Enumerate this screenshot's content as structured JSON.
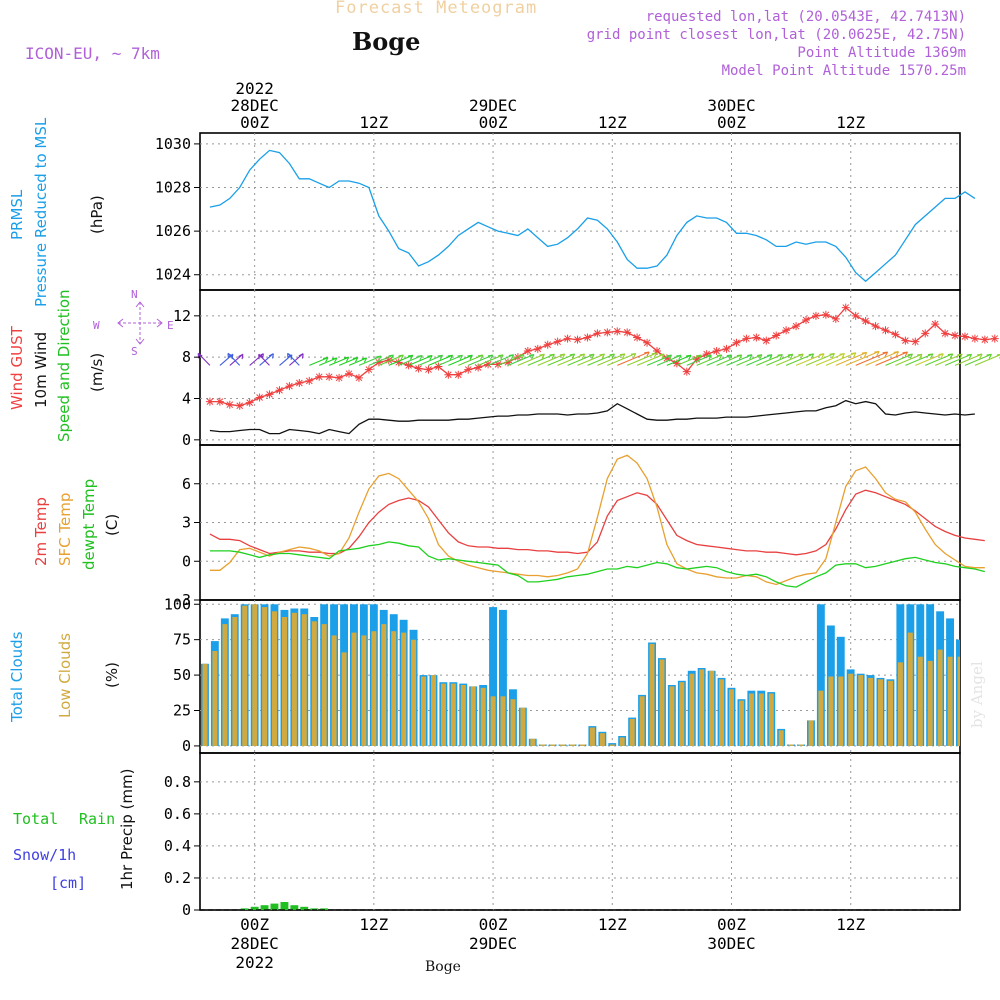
{
  "header": {
    "product": "Forecast Meteogram",
    "station": "Boge",
    "model": "ICON-EU, ~ 7km",
    "requested": "requested lon,lat (20.0543E, 42.7413N)",
    "gridpoint": "grid point closest lon,lat (20.0625E, 42.75N)",
    "point_alt": "Point Altitude 1369m",
    "model_alt": "Model Point Altitude 1570.25m",
    "footer_station": "Boge",
    "watermark": "by Angel"
  },
  "time_axis": {
    "top_labels": [
      {
        "lines": [
          "2022",
          "28DEC",
          "00Z"
        ],
        "hour": 0
      },
      {
        "lines": [
          "12Z"
        ],
        "hour": 12
      },
      {
        "lines": [
          "29DEC",
          "00Z"
        ],
        "hour": 24
      },
      {
        "lines": [
          "12Z"
        ],
        "hour": 36
      },
      {
        "lines": [
          "30DEC",
          "00Z"
        ],
        "hour": 48
      },
      {
        "lines": [
          "12Z"
        ],
        "hour": 60
      }
    ],
    "bottom_labels": [
      {
        "lines": [
          "00Z",
          "28DEC",
          "2022"
        ],
        "hour": 0
      },
      {
        "lines": [
          "12Z"
        ],
        "hour": 12
      },
      {
        "lines": [
          "00Z",
          "29DEC"
        ],
        "hour": 24
      },
      {
        "lines": [
          "12Z"
        ],
        "hour": 36
      },
      {
        "lines": [
          "00Z",
          "30DEC"
        ],
        "hour": 48
      },
      {
        "lines": [
          "12Z"
        ],
        "hour": 60
      }
    ],
    "start_hour": -5.5,
    "end_hour": 71
  },
  "panels": {
    "pressure": {
      "label1": "PRMSL",
      "label2": "Pressure Reduced to MSL",
      "unit": "(hPa)",
      "color": "#1a9fe8"
    },
    "wind": {
      "label_gust": "Wind GUST",
      "label_10m": "10m Wind",
      "label_dir": "Speed and Direction",
      "unit": "(m/s)",
      "compass": {
        "n": "N",
        "s": "S",
        "w": "W",
        "e": "E"
      }
    },
    "temp": {
      "label_2m": "2m Temp",
      "label_sfc": "SFC Temp",
      "label_dew": "dewpt Temp",
      "unit": "(C)"
    },
    "clouds": {
      "label_total": "Total Clouds",
      "label_low": "Low Clouds",
      "unit": "(%)"
    },
    "precip": {
      "label_total": "Total",
      "label_rain": "Rain",
      "label_snow": "Snow/1h",
      "label_cm": "[cm]",
      "unit": "1hr Precip (mm)"
    }
  },
  "chart_data": [
    {
      "type": "line",
      "title": "PRMSL Pressure Reduced to MSL",
      "ylabel": "(hPa)",
      "ylim": [
        1023.3,
        1030.5
      ],
      "yticks": [
        1024,
        1026,
        1028,
        1030
      ],
      "x_hours_start": -4.5,
      "x_step": 1,
      "series": [
        {
          "name": "PRMSL",
          "color": "#1a9fe8",
          "values": [
            1027.1,
            1027.2,
            1027.5,
            1028.0,
            1028.8,
            1029.3,
            1029.7,
            1029.6,
            1029.1,
            1028.4,
            1028.4,
            1028.2,
            1028.0,
            1028.3,
            1028.3,
            1028.2,
            1028.0,
            1026.7,
            1026.0,
            1025.2,
            1025.0,
            1024.4,
            1024.6,
            1024.9,
            1025.3,
            1025.8,
            1026.1,
            1026.4,
            1026.2,
            1026.0,
            1025.9,
            1025.8,
            1026.1,
            1025.7,
            1025.3,
            1025.4,
            1025.7,
            1026.1,
            1026.6,
            1026.5,
            1026.1,
            1025.5,
            1024.7,
            1024.3,
            1024.3,
            1024.4,
            1024.9,
            1025.8,
            1026.4,
            1026.7,
            1026.6,
            1026.6,
            1026.4,
            1025.9,
            1025.9,
            1025.8,
            1025.6,
            1025.3,
            1025.3,
            1025.5,
            1025.4,
            1025.5,
            1025.5,
            1025.3,
            1024.8,
            1024.1,
            1023.7,
            1024.1,
            1024.5,
            1024.9,
            1025.6,
            1026.3,
            1026.7,
            1027.1,
            1027.5,
            1027.5,
            1027.8,
            1027.5
          ]
        }
      ]
    },
    {
      "type": "line",
      "title": "Wind GUST / 10m Wind Speed and Direction",
      "ylabel": "(m/s)",
      "ylim": [
        -0.5,
        14.5
      ],
      "yticks": [
        0,
        4,
        8,
        12
      ],
      "x_hours_start": -4.5,
      "x_step": 1,
      "series": [
        {
          "name": "Wind GUST",
          "color": "#f04040",
          "values": [
            3.7,
            3.7,
            3.4,
            3.3,
            3.6,
            4.1,
            4.4,
            4.8,
            5.2,
            5.5,
            5.7,
            6.1,
            6.1,
            6.0,
            6.4,
            6.0,
            6.8,
            7.5,
            7.7,
            7.5,
            7.2,
            6.9,
            6.8,
            7.1,
            6.3,
            6.3,
            6.8,
            7.0,
            7.3,
            7.3,
            7.5,
            8.0,
            8.6,
            8.8,
            9.2,
            9.5,
            9.8,
            9.7,
            9.9,
            10.3,
            10.4,
            10.5,
            10.4,
            9.9,
            9.4,
            8.6,
            7.9,
            7.4,
            6.6,
            7.8,
            8.3,
            8.6,
            8.8,
            9.4,
            9.8,
            9.9,
            9.6,
            10.1,
            10.6,
            11.0,
            11.6,
            12.0,
            12.1,
            11.7,
            12.8,
            12.0,
            11.5,
            11.0,
            10.6,
            10.2,
            9.6,
            9.5,
            10.3,
            11.2,
            10.3,
            10.1,
            10.0,
            9.8,
            9.7,
            9.8
          ]
        },
        {
          "name": "10m Wind",
          "color": "#111111",
          "values": [
            0.9,
            0.8,
            0.8,
            0.9,
            1.0,
            1.0,
            0.6,
            0.6,
            1.0,
            0.9,
            0.8,
            0.6,
            1.0,
            0.8,
            0.6,
            1.5,
            2.0,
            2.0,
            1.9,
            1.8,
            1.8,
            1.9,
            1.9,
            1.9,
            1.9,
            2.0,
            2.0,
            2.1,
            2.2,
            2.3,
            2.3,
            2.4,
            2.4,
            2.5,
            2.5,
            2.5,
            2.4,
            2.5,
            2.5,
            2.6,
            2.8,
            3.5,
            3.0,
            2.5,
            2.0,
            1.9,
            1.9,
            2.0,
            2.0,
            2.1,
            2.1,
            2.1,
            2.2,
            2.2,
            2.2,
            2.3,
            2.4,
            2.5,
            2.6,
            2.7,
            2.8,
            2.8,
            3.1,
            3.3,
            3.8,
            3.5,
            3.7,
            3.5,
            2.5,
            2.4,
            2.6,
            2.7,
            2.6,
            2.5,
            2.4,
            2.5,
            2.4,
            2.5
          ]
        }
      ]
    },
    {
      "type": "line",
      "title": "2m Temp / SFC Temp / dewpt Temp",
      "ylabel": "(C)",
      "ylim": [
        -3,
        9
      ],
      "yticks": [
        -3,
        0,
        3,
        6
      ],
      "x_hours_start": -4.5,
      "x_step": 1,
      "series": [
        {
          "name": "2m Temp",
          "color": "#e84040",
          "values": [
            2.1,
            1.7,
            1.7,
            1.6,
            1.2,
            0.9,
            0.6,
            0.7,
            0.8,
            0.8,
            0.7,
            0.7,
            0.6,
            0.6,
            1.0,
            1.9,
            3.0,
            3.8,
            4.4,
            4.7,
            4.9,
            4.7,
            4.2,
            3.2,
            2.2,
            1.5,
            1.2,
            1.1,
            1.1,
            1.0,
            1.0,
            0.9,
            0.9,
            0.8,
            0.8,
            0.7,
            0.7,
            0.6,
            0.7,
            1.5,
            3.5,
            4.7,
            5.0,
            5.3,
            5.1,
            4.4,
            3.2,
            2.0,
            1.6,
            1.3,
            1.2,
            1.1,
            1.0,
            0.9,
            0.8,
            0.8,
            0.7,
            0.7,
            0.6,
            0.5,
            0.6,
            0.8,
            1.3,
            2.5,
            4.0,
            5.2,
            5.5,
            5.3,
            5.0,
            4.7,
            4.4,
            3.9,
            3.3,
            2.7,
            2.3,
            2.0,
            1.8,
            1.7,
            1.6
          ]
        },
        {
          "name": "SFC Temp",
          "color": "#e8a030",
          "values": [
            -0.7,
            -0.7,
            -0.1,
            0.9,
            1.0,
            0.7,
            0.4,
            0.7,
            0.9,
            1.1,
            1.0,
            0.8,
            0.4,
            0.6,
            1.8,
            3.8,
            5.6,
            6.6,
            6.8,
            6.4,
            5.5,
            4.6,
            3.3,
            1.3,
            0.4,
            0.0,
            -0.3,
            -0.5,
            -0.7,
            -0.8,
            -0.9,
            -1.0,
            -1.1,
            -1.1,
            -1.2,
            -1.1,
            -0.9,
            -0.6,
            0.6,
            3.4,
            6.4,
            7.9,
            8.2,
            7.6,
            6.4,
            4.2,
            1.3,
            -0.2,
            -0.6,
            -0.9,
            -1.0,
            -1.2,
            -1.3,
            -1.3,
            -1.1,
            -1.2,
            -1.6,
            -1.8,
            -1.5,
            -1.2,
            -1.0,
            -0.9,
            0.2,
            3.0,
            5.8,
            7.0,
            7.3,
            6.4,
            5.3,
            4.8,
            4.6,
            3.8,
            2.5,
            1.3,
            0.6,
            0.1,
            -0.4,
            -0.5,
            -0.5
          ]
        },
        {
          "name": "dewpt Temp",
          "color": "#20d020",
          "values": [
            0.8,
            0.8,
            0.8,
            0.7,
            0.5,
            0.3,
            0.5,
            0.6,
            0.6,
            0.5,
            0.4,
            0.3,
            0.2,
            0.8,
            0.9,
            1.0,
            1.2,
            1.3,
            1.5,
            1.4,
            1.2,
            1.1,
            0.4,
            0.1,
            0.2,
            0.1,
            0.0,
            -0.1,
            -0.2,
            -0.3,
            -0.9,
            -1.1,
            -1.6,
            -1.6,
            -1.5,
            -1.4,
            -1.2,
            -1.1,
            -1.0,
            -0.8,
            -0.6,
            -0.6,
            -0.4,
            -0.5,
            -0.3,
            -0.1,
            -0.2,
            -0.5,
            -0.6,
            -0.5,
            -0.4,
            -0.5,
            -0.8,
            -1.0,
            -1.1,
            -1.0,
            -1.2,
            -1.6,
            -1.9,
            -2.0,
            -1.6,
            -1.2,
            -0.9,
            -0.3,
            -0.2,
            -0.2,
            -0.5,
            -0.4,
            -0.2,
            0.0,
            0.2,
            0.3,
            0.1,
            -0.1,
            -0.2,
            -0.4,
            -0.5,
            -0.6,
            -0.8
          ]
        }
      ]
    },
    {
      "type": "bar",
      "title": "Total Clouds / Low Clouds",
      "ylabel": "(%)",
      "ylim": [
        -5,
        103
      ],
      "yticks": [
        0,
        25,
        50,
        75,
        100
      ],
      "x_hours_start": -5,
      "x_step": 1,
      "series": [
        {
          "name": "Total Clouds",
          "color": "#1a9fe8",
          "values": [
            58,
            74,
            90,
            93,
            100,
            100,
            100,
            100,
            96,
            97,
            97,
            91,
            100,
            100,
            100,
            100,
            100,
            100,
            96,
            93,
            89,
            82,
            50,
            50,
            45,
            45,
            44,
            42,
            43,
            98,
            96,
            40,
            27,
            5,
            1,
            1,
            1,
            1,
            1,
            14,
            10,
            2,
            7,
            20,
            36,
            73,
            62,
            43,
            46,
            53,
            55,
            53,
            48,
            41,
            33,
            39,
            39,
            38,
            12,
            1,
            1,
            18,
            100,
            85,
            77,
            54,
            51,
            50,
            48,
            47,
            100,
            100,
            100,
            100,
            95,
            90,
            75,
            53,
            41,
            41,
            73,
            100,
            100
          ]
        },
        {
          "name": "Low Clouds",
          "color": "#d0aa40",
          "values": [
            58,
            67,
            86,
            91,
            99,
            100,
            98,
            95,
            91,
            94,
            93,
            88,
            86,
            78,
            66,
            80,
            78,
            81,
            86,
            81,
            80,
            75,
            49,
            50,
            44,
            44,
            43,
            42,
            41,
            35,
            35,
            33,
            27,
            5,
            1,
            1,
            1,
            1,
            1,
            13,
            9,
            1,
            6,
            19,
            35,
            72,
            61,
            42,
            45,
            51,
            54,
            53,
            47,
            40,
            32,
            37,
            37,
            37,
            11,
            1,
            1,
            18,
            39,
            49,
            49,
            51,
            50,
            48,
            47,
            46,
            59,
            80,
            63,
            60,
            68,
            63,
            63,
            42,
            40,
            40,
            36,
            25,
            9
          ]
        }
      ]
    },
    {
      "type": "bar",
      "title": "1hr Precip",
      "ylabel": "1hr Precip (mm)",
      "ylim": [
        0,
        0.98
      ],
      "yticks": [
        0,
        0.2,
        0.4,
        0.6,
        0.8
      ],
      "x_hours_start": -1,
      "x_step": 1,
      "series": [
        {
          "name": "Total Rain",
          "color": "#20c020",
          "values": [
            0.01,
            0.02,
            0.03,
            0.04,
            0.05,
            0.03,
            0.02,
            0.01,
            0.01
          ]
        }
      ]
    }
  ]
}
